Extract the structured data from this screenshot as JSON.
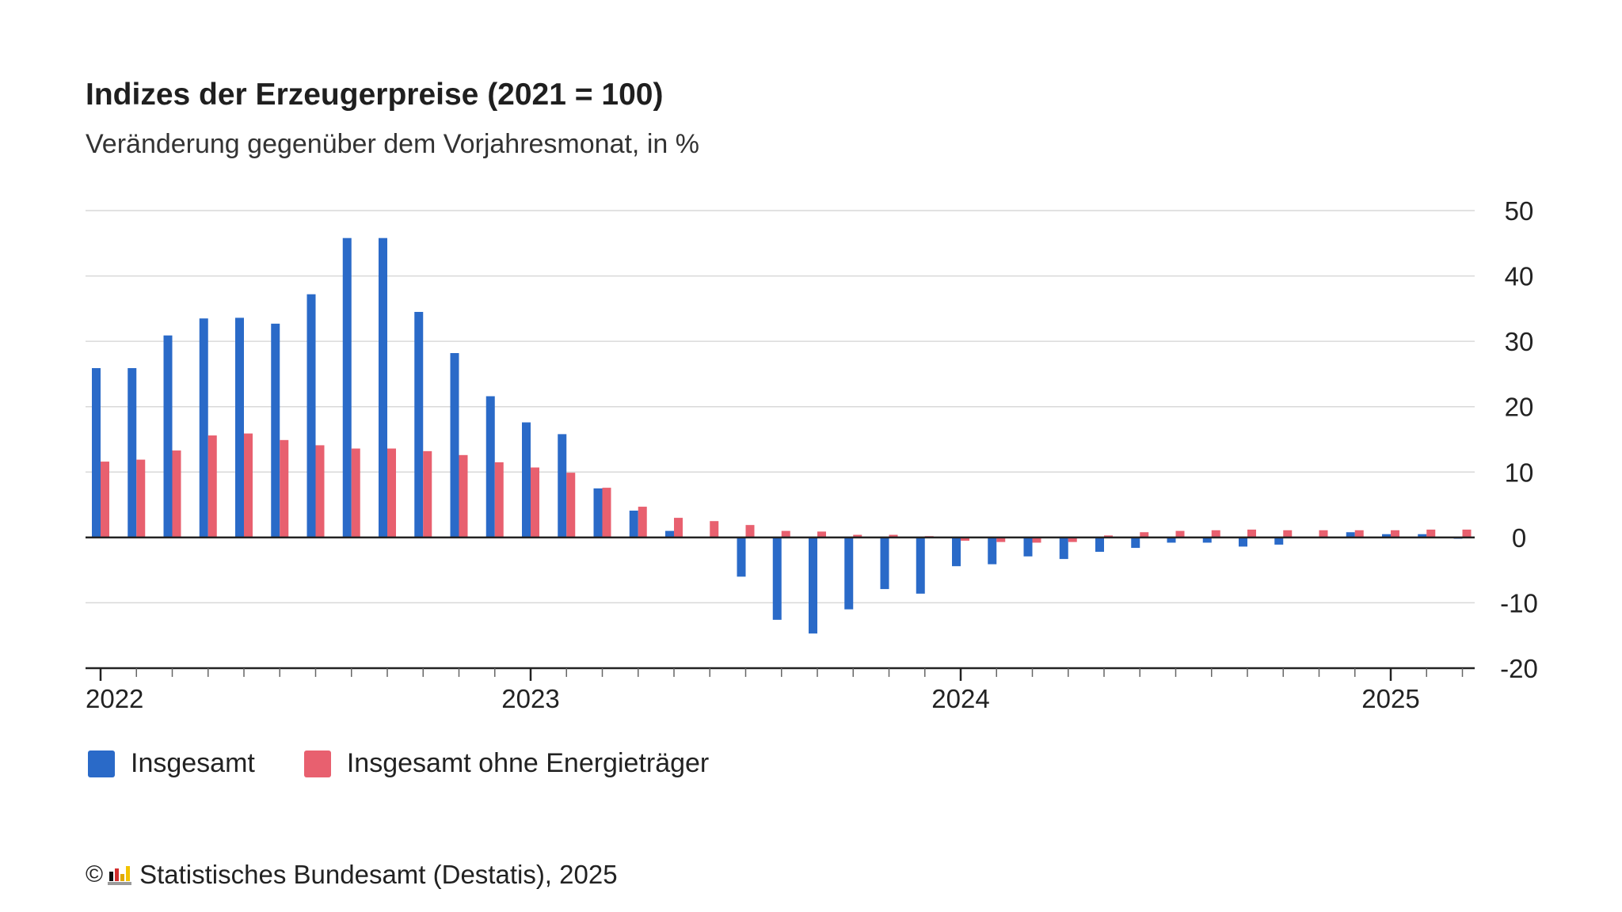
{
  "title": "Indizes der Erzeugerpreise (2021 = 100)",
  "subtitle": "Veränderung gegenüber dem Vorjahresmonat, in %",
  "legend": {
    "series1": "Insgesamt",
    "series2": "Insgesamt ohne Energieträger"
  },
  "footer": {
    "copyright_symbol": "©",
    "source": "Statistisches Bundesamt (Destatis), 2025"
  },
  "colors": {
    "series1": "#2a6ac8",
    "series2": "#e8606f",
    "grid": "#d9d9d9",
    "axis": "#222222"
  },
  "chart_data": {
    "type": "bar",
    "title": "Indizes der Erzeugerpreise (2021 = 100)",
    "subtitle": "Veränderung gegenüber dem Vorjahresmonat, in %",
    "xlabel": "",
    "ylabel": "",
    "ylim": [
      -20,
      50
    ],
    "yticks": [
      50,
      40,
      30,
      20,
      10,
      0,
      -10,
      -20
    ],
    "y_axis_position": "right",
    "grid": true,
    "legend_position": "bottom-left",
    "categories": [
      "2022-01",
      "2022-02",
      "2022-03",
      "2022-04",
      "2022-05",
      "2022-06",
      "2022-07",
      "2022-08",
      "2022-09",
      "2022-10",
      "2022-11",
      "2022-12",
      "2023-01",
      "2023-02",
      "2023-03",
      "2023-04",
      "2023-05",
      "2023-06",
      "2023-07",
      "2023-08",
      "2023-09",
      "2023-10",
      "2023-11",
      "2023-12",
      "2024-01",
      "2024-02",
      "2024-03",
      "2024-04",
      "2024-05",
      "2024-06",
      "2024-07",
      "2024-08",
      "2024-09",
      "2024-10",
      "2024-11",
      "2024-12",
      "2025-01",
      "2025-02",
      "2025-03"
    ],
    "year_labels": [
      {
        "label": "2022",
        "index": 0
      },
      {
        "label": "2023",
        "index": 12
      },
      {
        "label": "2024",
        "index": 24
      },
      {
        "label": "2025",
        "index": 36
      }
    ],
    "series": [
      {
        "name": "Insgesamt",
        "color": "#2a6ac8",
        "values": [
          25.9,
          25.9,
          30.9,
          33.5,
          33.6,
          32.7,
          37.2,
          45.8,
          45.8,
          34.5,
          28.2,
          21.6,
          17.6,
          15.8,
          7.5,
          4.1,
          1.0,
          0.1,
          -6.0,
          -12.6,
          -14.7,
          -11.0,
          -7.9,
          -8.6,
          -4.4,
          -4.1,
          -2.9,
          -3.3,
          -2.2,
          -1.6,
          -0.8,
          -0.8,
          -1.4,
          -1.1,
          0.1,
          0.8,
          0.5,
          0.5,
          -0.2
        ]
      },
      {
        "name": "Insgesamt ohne Energieträger",
        "color": "#e8606f",
        "values": [
          11.6,
          11.9,
          13.3,
          15.6,
          15.9,
          14.9,
          14.1,
          13.6,
          13.6,
          13.2,
          12.6,
          11.5,
          10.7,
          9.9,
          7.6,
          4.7,
          3.0,
          2.5,
          1.9,
          1.0,
          0.9,
          0.4,
          0.4,
          0.2,
          -0.5,
          -0.7,
          -0.8,
          -0.7,
          0.3,
          0.8,
          1.0,
          1.1,
          1.2,
          1.1,
          1.1,
          1.1,
          1.1,
          1.2,
          1.2
        ]
      }
    ]
  }
}
